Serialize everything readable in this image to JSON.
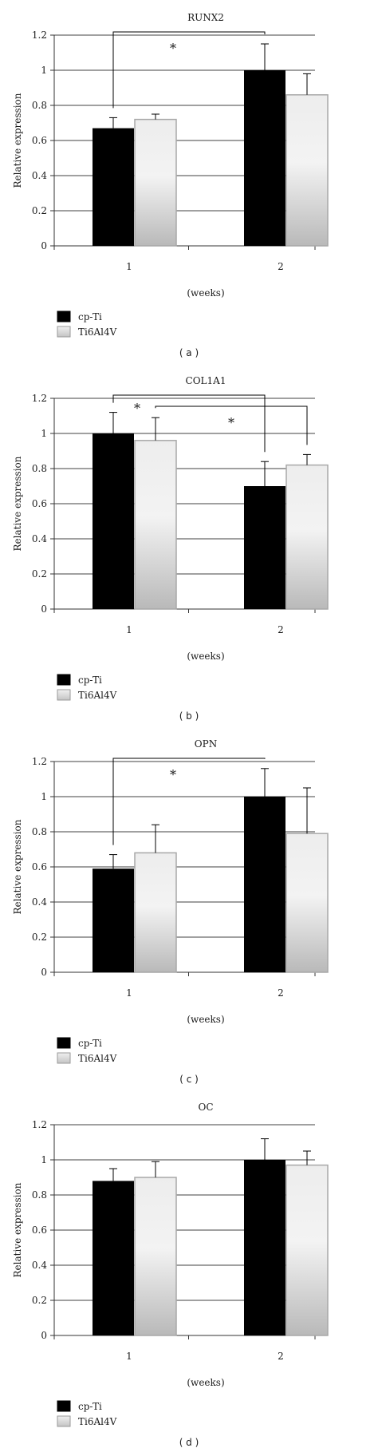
{
  "figure": {
    "legend_entries": [
      "cp-Ti",
      "Ti6Al4V"
    ],
    "colors": {
      "cp-Ti": "#000000",
      "Ti6Al4V": "#e6e6e6",
      "axis": "#333333",
      "grid": "#000000"
    }
  },
  "chart_data": [
    {
      "type": "bar",
      "panel_label": "( a )",
      "title": "RUNX2",
      "xlabel": "(weeks)",
      "ylabel": "Relative expression",
      "categories": [
        "1",
        "2"
      ],
      "ylim": [
        0,
        1.2
      ],
      "yticks": [
        "0",
        "0.2",
        "0.4",
        "0.6",
        "0.8",
        "1",
        "1.2"
      ],
      "grid": true,
      "legend_position": "below",
      "series": [
        {
          "name": "cp-Ti",
          "values": [
            0.67,
            1.0
          ],
          "errors": [
            0.06,
            0.15
          ]
        },
        {
          "name": "Ti6Al4V",
          "values": [
            0.72,
            0.86
          ],
          "errors": [
            0.03,
            0.12
          ]
        }
      ],
      "significance": [
        {
          "from": "cp-Ti week 1",
          "to": "cp-Ti week 2",
          "label": "*"
        }
      ]
    },
    {
      "type": "bar",
      "panel_label": "( b )",
      "title": "COL1A1",
      "xlabel": "(weeks)",
      "ylabel": "Relative expression",
      "categories": [
        "1",
        "2"
      ],
      "ylim": [
        0,
        1.2
      ],
      "yticks": [
        "0",
        "0.2",
        "0.4",
        "0.6",
        "0.8",
        "1",
        "1.2"
      ],
      "grid": true,
      "legend_position": "below",
      "series": [
        {
          "name": "cp-Ti",
          "values": [
            1.0,
            0.7
          ],
          "errors": [
            0.12,
            0.14
          ]
        },
        {
          "name": "Ti6Al4V",
          "values": [
            0.96,
            0.82
          ],
          "errors": [
            0.13,
            0.06
          ]
        }
      ],
      "significance": [
        {
          "from": "cp-Ti week 1",
          "to": "cp-Ti week 2",
          "label": "*"
        },
        {
          "from": "Ti6Al4V week 1",
          "to": "Ti6Al4V week 2",
          "label": "*"
        }
      ]
    },
    {
      "type": "bar",
      "panel_label": "( c )",
      "title": "OPN",
      "xlabel": "(weeks)",
      "ylabel": "Relative expression",
      "categories": [
        "1",
        "2"
      ],
      "ylim": [
        0,
        1.2
      ],
      "yticks": [
        "0",
        "0.2",
        "0.4",
        "0.6",
        "0.8",
        "1",
        "1.2"
      ],
      "grid": true,
      "legend_position": "below",
      "series": [
        {
          "name": "cp-Ti",
          "values": [
            0.59,
            1.0
          ],
          "errors": [
            0.08,
            0.16
          ]
        },
        {
          "name": "Ti6Al4V",
          "values": [
            0.68,
            0.79
          ],
          "errors": [
            0.16,
            0.26
          ]
        }
      ],
      "significance": [
        {
          "from": "cp-Ti week 1",
          "to": "cp-Ti week 2",
          "label": "*"
        }
      ]
    },
    {
      "type": "bar",
      "panel_label": "( d )",
      "title": "OC",
      "xlabel": "(weeks)",
      "ylabel": "Relative expression",
      "categories": [
        "1",
        "2"
      ],
      "ylim": [
        0,
        1.2
      ],
      "yticks": [
        "0",
        "0.2",
        "0.4",
        "0.6",
        "0.8",
        "1",
        "1.2"
      ],
      "grid": true,
      "legend_position": "below",
      "series": [
        {
          "name": "cp-Ti",
          "values": [
            0.88,
            1.0
          ],
          "errors": [
            0.07,
            0.12
          ]
        },
        {
          "name": "Ti6Al4V",
          "values": [
            0.9,
            0.97
          ],
          "errors": [
            0.09,
            0.08
          ]
        }
      ],
      "significance": []
    }
  ]
}
